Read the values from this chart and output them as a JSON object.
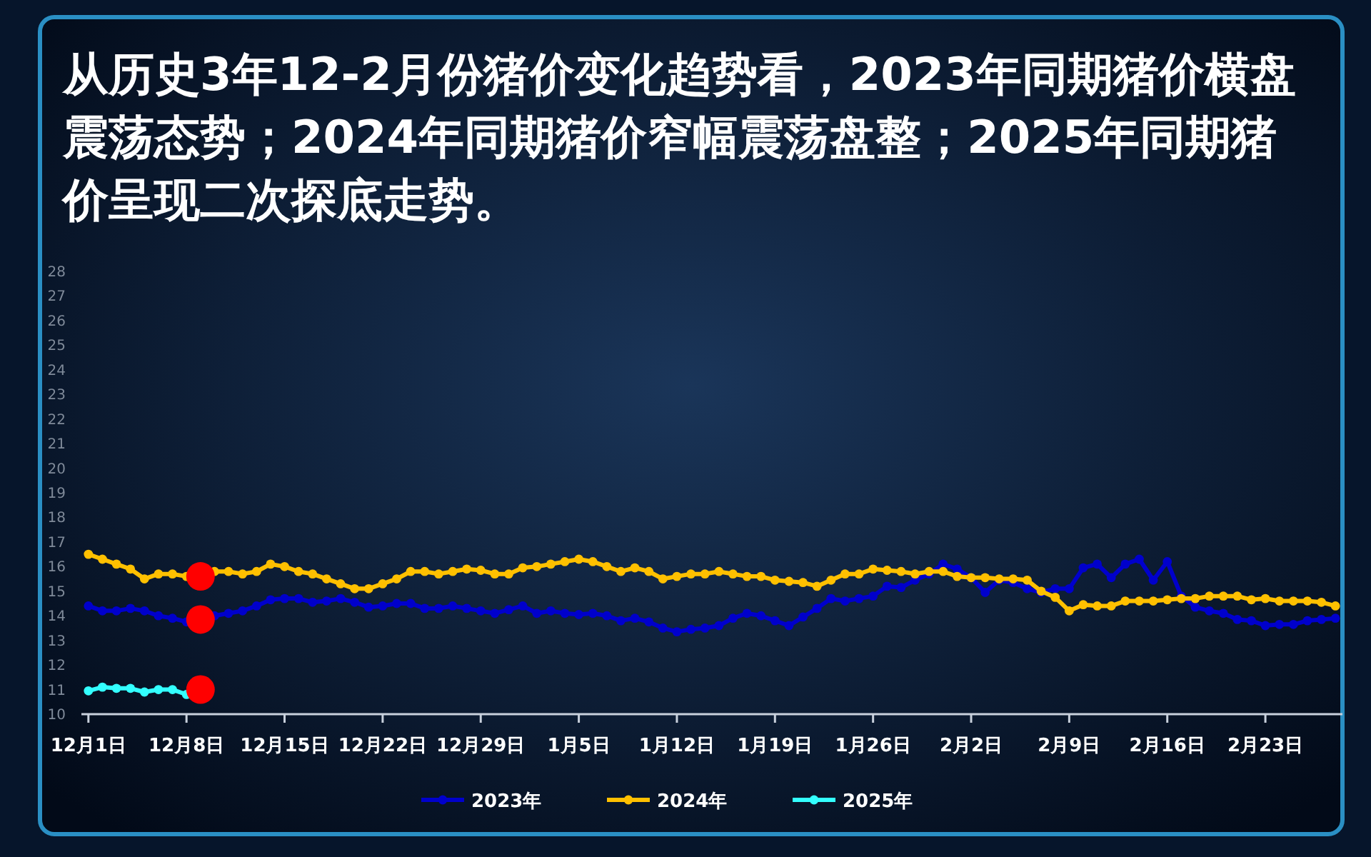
{
  "chart_data": {
    "type": "line",
    "title": "从历史3年12-2月份猪价变化趋势看，2023年同期猪价横盘震荡态势；2024年同期猪价窄幅震荡盘整；2025年同期猪价呈现二次探底走势。",
    "categories": [
      "12月1日",
      null,
      null,
      null,
      null,
      null,
      null,
      "12月8日",
      null,
      null,
      null,
      null,
      null,
      null,
      "12月15日",
      null,
      null,
      null,
      null,
      null,
      null,
      "12月22日",
      null,
      null,
      null,
      null,
      null,
      null,
      "12月29日",
      null,
      null,
      null,
      null,
      null,
      null,
      "1月5日",
      null,
      null,
      null,
      null,
      null,
      null,
      "1月12日",
      null,
      null,
      null,
      null,
      null,
      null,
      "1月19日",
      null,
      null,
      null,
      null,
      null,
      null,
      "1月26日",
      null,
      null,
      null,
      null,
      null,
      null,
      "2月2日",
      null,
      null,
      null,
      null,
      null,
      null,
      "2月9日",
      null,
      null,
      null,
      null,
      null,
      null,
      "2月16日",
      null,
      null,
      null,
      null,
      null,
      null,
      "2月23日",
      null,
      null,
      null,
      null,
      null
    ],
    "series": [
      {
        "name": "2023年",
        "color": "#0000cc",
        "values": [
          14.4,
          14.2,
          14.2,
          14.3,
          14.2,
          14.0,
          13.9,
          13.75,
          null,
          14.0,
          14.1,
          14.2,
          14.4,
          14.65,
          14.7,
          14.7,
          14.55,
          14.6,
          14.7,
          14.55,
          14.35,
          14.4,
          14.5,
          14.5,
          14.3,
          14.3,
          14.4,
          14.3,
          14.2,
          14.1,
          14.25,
          14.4,
          14.1,
          14.2,
          14.1,
          14.05,
          14.1,
          14.0,
          13.8,
          13.9,
          13.75,
          13.5,
          13.35,
          13.45,
          13.5,
          13.6,
          13.9,
          14.1,
          14.0,
          13.8,
          13.6,
          13.95,
          14.3,
          14.7,
          14.6,
          14.7,
          14.8,
          15.2,
          15.15,
          15.45,
          15.7,
          16.1,
          15.9,
          15.55,
          14.95,
          15.45,
          15.35,
          15.1,
          14.95,
          15.1,
          15.1,
          15.95,
          16.1,
          15.55,
          16.1,
          16.3,
          15.45,
          16.2,
          14.8,
          14.35,
          14.2,
          14.1,
          13.85,
          13.8,
          13.6,
          13.65,
          13.65,
          13.8,
          13.85,
          13.9
        ]
      },
      {
        "name": "2024年",
        "color": "#ffc000",
        "values": [
          16.5,
          16.3,
          16.1,
          15.9,
          15.5,
          15.7,
          15.7,
          15.6,
          null,
          15.8,
          15.8,
          15.7,
          15.8,
          16.1,
          16.0,
          15.8,
          15.7,
          15.5,
          15.3,
          15.1,
          15.1,
          15.3,
          15.5,
          15.8,
          15.8,
          15.7,
          15.8,
          15.9,
          15.85,
          15.7,
          15.7,
          15.95,
          16.0,
          16.1,
          16.2,
          16.3,
          16.2,
          16.0,
          15.8,
          15.95,
          15.8,
          15.5,
          15.6,
          15.7,
          15.7,
          15.8,
          15.7,
          15.6,
          15.6,
          15.45,
          15.4,
          15.35,
          15.2,
          15.45,
          15.7,
          15.7,
          15.9,
          15.85,
          15.8,
          15.7,
          15.8,
          15.8,
          15.6,
          15.55,
          15.55,
          15.5,
          15.5,
          15.45,
          15.0,
          14.75,
          14.2,
          14.45,
          14.4,
          14.4,
          14.6,
          14.6,
          14.6,
          14.65,
          14.7,
          14.7,
          14.8,
          14.8,
          14.8,
          14.65,
          14.7,
          14.6,
          14.6,
          14.6,
          14.55,
          14.4
        ]
      },
      {
        "name": "2025年",
        "color": "#33ffff",
        "values": [
          10.95,
          11.1,
          11.05,
          11.05,
          10.9,
          11.0,
          11.0,
          10.8,
          null,
          null,
          null,
          null,
          null,
          null,
          null,
          null,
          null,
          null,
          null,
          null,
          null,
          null,
          null,
          null,
          null,
          null,
          null,
          null,
          null,
          null,
          null,
          null,
          null,
          null,
          null,
          null,
          null,
          null,
          null,
          null,
          null,
          null,
          null,
          null,
          null,
          null,
          null,
          null,
          null,
          null,
          null,
          null,
          null,
          null,
          null,
          null,
          null,
          null,
          null,
          null,
          null,
          null,
          null,
          null,
          null,
          null,
          null,
          null,
          null,
          null,
          null,
          null,
          null,
          null,
          null,
          null,
          null,
          null,
          null,
          null,
          null,
          null,
          null,
          null,
          null,
          null,
          null,
          null,
          null,
          null
        ]
      },
      {
        "type": "scatter",
        "color": "#ff0000",
        "values": [
          null,
          null,
          null,
          null,
          null,
          null,
          null,
          null,
          15.6,
          null,
          null,
          null,
          null,
          null,
          null,
          null,
          null,
          null,
          null,
          null,
          null,
          null,
          null,
          null,
          null,
          null,
          null,
          null,
          null,
          null,
          null,
          null,
          null,
          null,
          null,
          null,
          null,
          null,
          null,
          null,
          null,
          null,
          null,
          null,
          null,
          null,
          null,
          null,
          null,
          null,
          null,
          null,
          null,
          null,
          null,
          null,
          null,
          null,
          null,
          null,
          null,
          null,
          null,
          null,
          null,
          null,
          null,
          null,
          null,
          null,
          null,
          null,
          null,
          null,
          null,
          null,
          null,
          null,
          null,
          null,
          null,
          null,
          null,
          null,
          null,
          null,
          null,
          null,
          null,
          null
        ]
      },
      {
        "type": "scatter",
        "color": "#ff0000",
        "values": [
          null,
          null,
          null,
          null,
          null,
          null,
          null,
          null,
          13.85,
          null,
          null,
          null,
          null,
          null,
          null,
          null,
          null,
          null,
          null,
          null,
          null,
          null,
          null,
          null,
          null,
          null,
          null,
          null,
          null,
          null,
          null,
          null,
          null,
          null,
          null,
          null,
          null,
          null,
          null,
          null,
          null,
          null,
          null,
          null,
          null,
          null,
          null,
          null,
          null,
          null,
          null,
          null,
          null,
          null,
          null,
          null,
          null,
          null,
          null,
          null,
          null,
          null,
          null,
          null,
          null,
          null,
          null,
          null,
          null,
          null,
          null,
          null,
          null,
          null,
          null,
          null,
          null,
          null,
          null,
          null,
          null,
          null,
          null,
          null,
          null,
          null,
          null,
          null,
          null,
          null
        ]
      },
      {
        "type": "scatter",
        "color": "#ff0000",
        "values": [
          null,
          null,
          null,
          null,
          null,
          null,
          null,
          null,
          11.0,
          null,
          null,
          null,
          null,
          null,
          null,
          null,
          null,
          null,
          null,
          null,
          null,
          null,
          null,
          null,
          null,
          null,
          null,
          null,
          null,
          null,
          null,
          null,
          null,
          null,
          null,
          null,
          null,
          null,
          null,
          null,
          null,
          null,
          null,
          null,
          null,
          null,
          null,
          null,
          null,
          null,
          null,
          null,
          null,
          null,
          null,
          null,
          null,
          null,
          null,
          null,
          null,
          null,
          null,
          null,
          null,
          null,
          null,
          null,
          null,
          null,
          null,
          null,
          null,
          null,
          null,
          null,
          null,
          null,
          null,
          null,
          null,
          null,
          null,
          null,
          null,
          null,
          null,
          null,
          null,
          null
        ]
      }
    ],
    "ylim": [
      10,
      28
    ],
    "yticks": [
      10,
      11,
      12,
      13,
      14,
      15,
      16,
      17,
      18,
      19,
      20,
      21,
      22,
      23,
      24,
      25,
      26,
      27,
      28
    ],
    "marker": "circle",
    "legend": "bottom",
    "grid": false
  }
}
